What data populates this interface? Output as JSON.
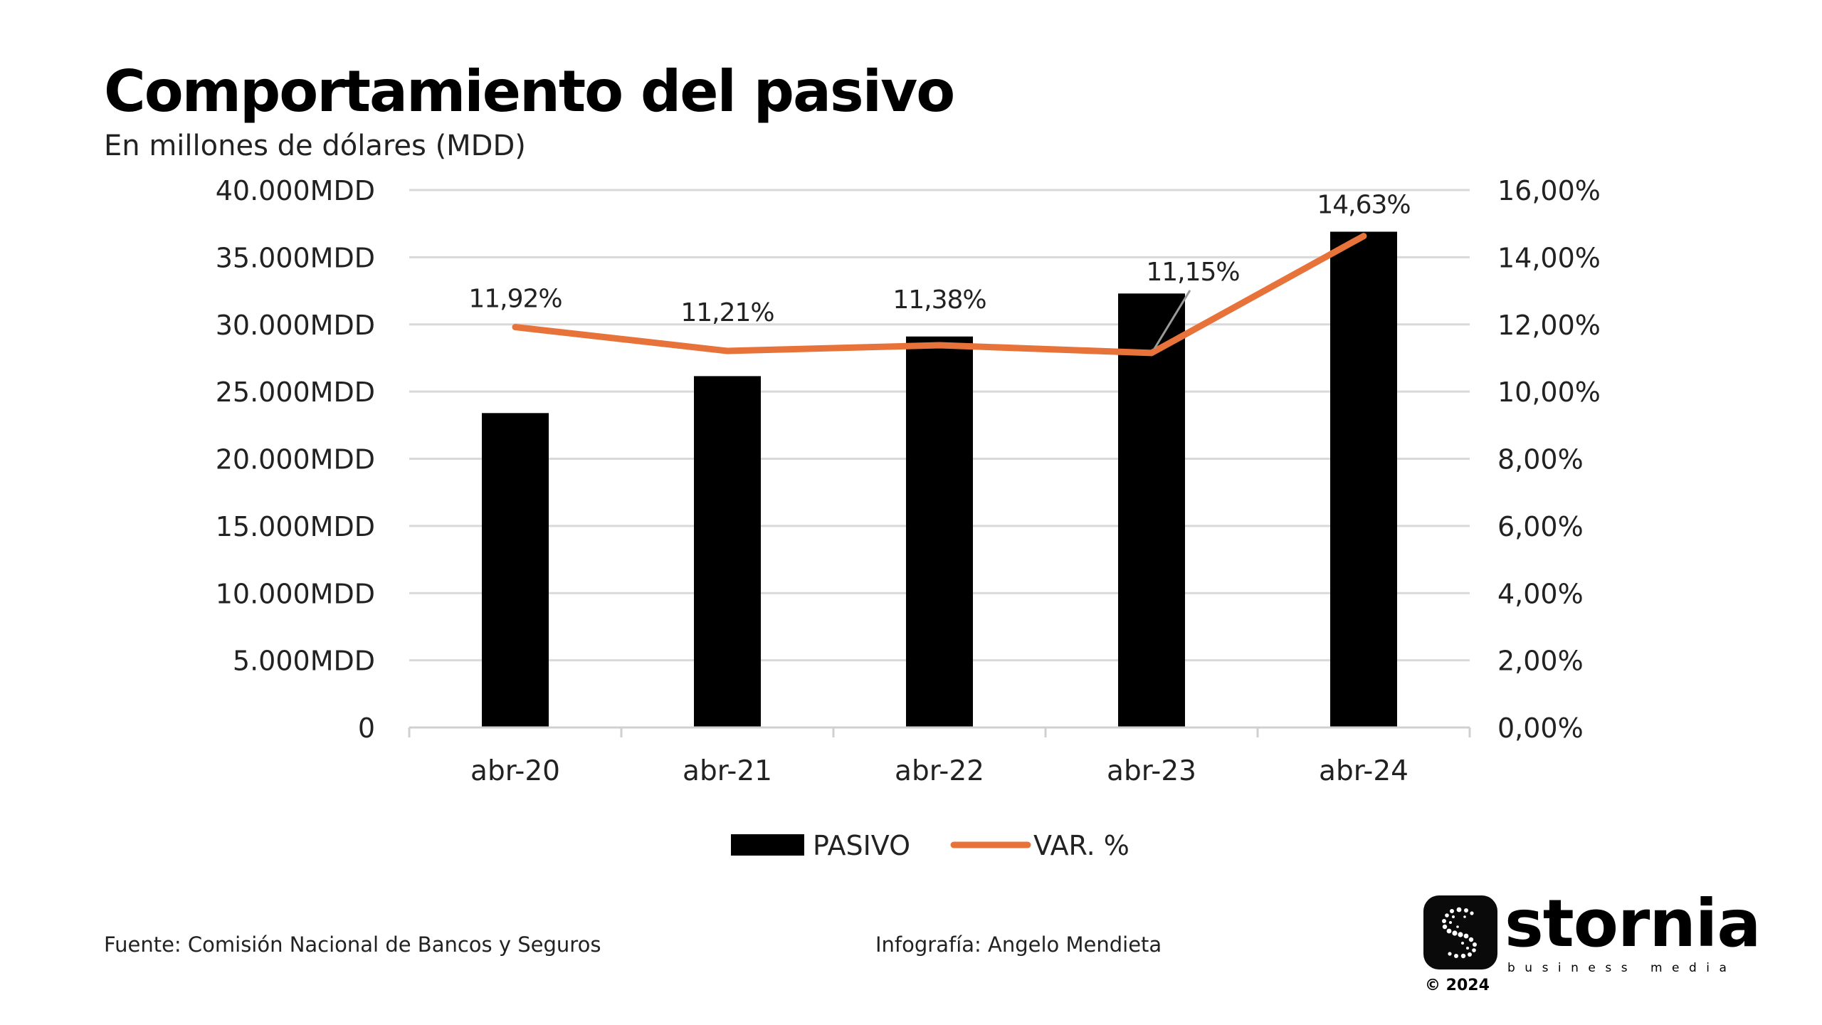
{
  "header": {
    "title": "Comportamiento del pasivo",
    "subtitle": "En millones de dólares (MDD)"
  },
  "chart_data": {
    "type": "bar",
    "categories": [
      "abr-20",
      "abr-21",
      "abr-22",
      "abr-23",
      "abr-24"
    ],
    "series": [
      {
        "name": "PASIVO",
        "type": "bar",
        "axis": "left",
        "color": "#000000",
        "values": [
          23400,
          26150,
          29100,
          32300,
          36900
        ]
      },
      {
        "name": "VAR. %",
        "type": "line",
        "axis": "right",
        "color": "#E8733A",
        "values": [
          11.92,
          11.21,
          11.38,
          11.15,
          14.63
        ],
        "data_labels": [
          "11,92%",
          "11,21%",
          "11,38%",
          "11,15%",
          "14,63%"
        ]
      }
    ],
    "y_left": {
      "range": [
        0,
        40000
      ],
      "tick_labels": [
        "0",
        "5.000MDD",
        "10.000MDD",
        "15.000MDD",
        "20.000MDD",
        "25.000MDD",
        "30.000MDD",
        "35.000MDD",
        "40.000MDD"
      ]
    },
    "y_right": {
      "range": [
        0,
        16
      ],
      "tick_labels": [
        "0,00%",
        "2,00%",
        "4,00%",
        "6,00%",
        "8,00%",
        "10,00%",
        "12,00%",
        "14,00%",
        "16,00%"
      ]
    },
    "grid": true,
    "legend_position": "bottom"
  },
  "footer": {
    "source": "Fuente: Comisión Nacional de Bancos y Seguros",
    "credit": "Infografía: Angelo Mendieta"
  },
  "brand": {
    "name": "stornia",
    "tagline": "business media",
    "copyright": "© 2024",
    "icon": "stornia-s-logo-icon"
  }
}
